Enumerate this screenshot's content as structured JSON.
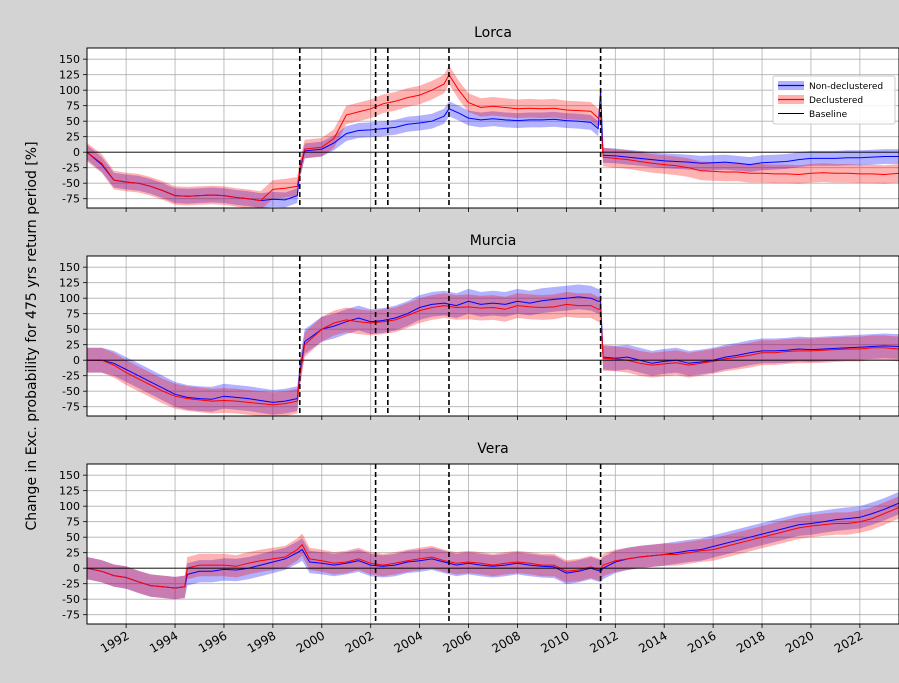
{
  "figure": {
    "ylabel": "Change in Exc. probability for 475 yrs return period [%]",
    "background_color": "#d3d3d3",
    "axes_background_color": "#ffffff",
    "grid": true
  },
  "legend": {
    "placement": "top-right of first panel",
    "entries": [
      {
        "label": "Non-declustered",
        "color": "#0000ff"
      },
      {
        "label": "Declustered",
        "color": "#ff0000"
      },
      {
        "label": "Baseline",
        "color": "#000000"
      }
    ]
  },
  "chart_data": [
    {
      "type": "line",
      "title": "Lorca",
      "xlim": [
        1990.4,
        2023.6
      ],
      "ylim": [
        -90,
        168
      ],
      "xticks": [
        "1992",
        "1994",
        "1996",
        "1998",
        "2000",
        "2002",
        "2004",
        "2006",
        "2008",
        "2010",
        "2012",
        "2014",
        "2016",
        "2018",
        "2020",
        "2022"
      ],
      "yticks": [
        "150",
        "125",
        "100",
        "75",
        "50",
        "25",
        "0",
        "-25",
        "-50",
        "-75"
      ],
      "baseline": 0,
      "event_lines": [
        1999.1,
        2002.2,
        2002.7,
        2005.2,
        2011.4
      ],
      "series": [
        {
          "name": "Non-declustered",
          "color": "#0000ff",
          "band_width": 12,
          "x": [
            1990.4,
            1991,
            1991.5,
            1992,
            1992.5,
            1993,
            1993.5,
            1994,
            1994.5,
            1995,
            1995.5,
            1996,
            1996.5,
            1997,
            1997.5,
            1998,
            1998.5,
            1999,
            1999.1,
            1999.3,
            2000,
            2000.5,
            2001,
            2001.5,
            2002,
            2002.5,
            2003,
            2003.5,
            2004,
            2004.5,
            2005,
            2005.2,
            2005.6,
            2006,
            2006.5,
            2007,
            2007.5,
            2008,
            2008.5,
            2009,
            2009.5,
            2010,
            2010.5,
            2011,
            2011.3,
            2011.4,
            2011.5,
            2012,
            2012.5,
            2013,
            2013.5,
            2014,
            2014.5,
            2015,
            2015.5,
            2016,
            2016.5,
            2017,
            2017.5,
            2018,
            2018.5,
            2019,
            2019.5,
            2020,
            2020.5,
            2021,
            2021.5,
            2022,
            2022.5,
            2023,
            2023.6
          ],
          "y": [
            0,
            -20,
            -45,
            -48,
            -50,
            -55,
            -62,
            -70,
            -71,
            -70,
            -69,
            -70,
            -73,
            -75,
            -78,
            -76,
            -77,
            -70,
            -30,
            2,
            5,
            15,
            30,
            35,
            36,
            38,
            40,
            45,
            47,
            50,
            58,
            70,
            63,
            55,
            52,
            54,
            52,
            51,
            52,
            52,
            53,
            51,
            50,
            48,
            38,
            100,
            -5,
            -6,
            -8,
            -10,
            -12,
            -14,
            -15,
            -16,
            -18,
            -17,
            -16,
            -18,
            -20,
            -17,
            -16,
            -15,
            -12,
            -10,
            -10,
            -10,
            -9,
            -9,
            -8,
            -7,
            -7
          ]
        },
        {
          "name": "Declustered",
          "color": "#ff0000",
          "band_width": 15,
          "x": [
            1990.4,
            1991,
            1991.5,
            1992,
            1992.5,
            1993,
            1993.5,
            1994,
            1994.5,
            1995,
            1995.5,
            1996,
            1996.5,
            1997,
            1997.5,
            1998,
            1998.5,
            1999,
            1999.1,
            1999.3,
            2000,
            2000.5,
            2001,
            2001.5,
            2002,
            2002.5,
            2003,
            2003.5,
            2004,
            2004.5,
            2005,
            2005.2,
            2005.6,
            2006,
            2006.5,
            2007,
            2007.5,
            2008,
            2008.5,
            2009,
            2009.5,
            2010,
            2010.5,
            2011,
            2011.3,
            2011.4,
            2011.5,
            2012,
            2012.5,
            2013,
            2013.5,
            2014,
            2014.5,
            2015,
            2015.5,
            2016,
            2016.5,
            2017,
            2017.5,
            2018,
            2018.5,
            2019,
            2019.5,
            2020,
            2020.5,
            2021,
            2021.5,
            2022,
            2022.5,
            2023,
            2023.6
          ],
          "y": [
            0,
            -18,
            -45,
            -48,
            -50,
            -55,
            -62,
            -70,
            -71,
            -70,
            -69,
            -70,
            -73,
            -75,
            -78,
            -60,
            -58,
            -55,
            -28,
            5,
            8,
            22,
            60,
            65,
            70,
            78,
            82,
            88,
            92,
            100,
            110,
            125,
            100,
            80,
            72,
            74,
            72,
            70,
            71,
            70,
            71,
            68,
            67,
            66,
            55,
            60,
            -8,
            -10,
            -12,
            -15,
            -18,
            -20,
            -22,
            -25,
            -30,
            -31,
            -32,
            -32,
            -34,
            -34,
            -35,
            -35,
            -36,
            -34,
            -33,
            -34,
            -34,
            -35,
            -35,
            -36,
            -34
          ]
        }
      ]
    },
    {
      "type": "line",
      "title": "Murcia",
      "xlim": [
        1990.4,
        2023.6
      ],
      "ylim": [
        -90,
        168
      ],
      "xticks": [
        "1992",
        "1994",
        "1996",
        "1998",
        "2000",
        "2002",
        "2004",
        "2006",
        "2008",
        "2010",
        "2012",
        "2014",
        "2016",
        "2018",
        "2020",
        "2022"
      ],
      "yticks": [
        "150",
        "125",
        "100",
        "75",
        "50",
        "25",
        "0",
        "-25",
        "-50",
        "-75"
      ],
      "baseline": 0,
      "event_lines": [
        1999.1,
        2002.2,
        2002.7,
        2005.2,
        2011.4
      ],
      "series": [
        {
          "name": "Non-declustered",
          "color": "#0000ff",
          "band_width": 20,
          "x": [
            1990.4,
            1991,
            1991.5,
            1992,
            1992.5,
            1993,
            1993.5,
            1994,
            1994.5,
            1995,
            1995.5,
            1996,
            1996.5,
            1997,
            1997.5,
            1998,
            1998.5,
            1999,
            1999.1,
            1999.3,
            2000,
            2000.5,
            2001,
            2001.5,
            2002,
            2002.5,
            2003,
            2003.5,
            2004,
            2004.5,
            2005,
            2005.5,
            2006,
            2006.5,
            2007,
            2007.5,
            2008,
            2008.5,
            2009,
            2009.5,
            2010,
            2010.5,
            2011,
            2011.3,
            2011.4,
            2011.5,
            2012,
            2012.5,
            2013,
            2013.5,
            2014,
            2014.5,
            2015,
            2015.5,
            2016,
            2016.5,
            2017,
            2017.5,
            2018,
            2018.5,
            2019,
            2019.5,
            2020,
            2020.5,
            2021,
            2021.5,
            2022,
            2022.5,
            2023,
            2023.6
          ],
          "y": [
            0,
            0,
            -5,
            -15,
            -25,
            -35,
            -45,
            -55,
            -60,
            -62,
            -63,
            -58,
            -60,
            -62,
            -65,
            -68,
            -66,
            -62,
            -20,
            30,
            50,
            55,
            62,
            68,
            62,
            64,
            68,
            75,
            85,
            90,
            92,
            88,
            95,
            90,
            92,
            90,
            95,
            92,
            96,
            98,
            100,
            102,
            100,
            95,
            95,
            5,
            3,
            5,
            0,
            -5,
            -2,
            0,
            -5,
            -3,
            0,
            5,
            8,
            12,
            15,
            15,
            16,
            18,
            17,
            18,
            19,
            20,
            21,
            22,
            23,
            22
          ]
        },
        {
          "name": "Declustered",
          "color": "#ff0000",
          "band_width": 20,
          "x": [
            1990.4,
            1991,
            1991.5,
            1992,
            1992.5,
            1993,
            1993.5,
            1994,
            1994.5,
            1995,
            1995.5,
            1996,
            1996.5,
            1997,
            1997.5,
            1998,
            1998.5,
            1999,
            1999.1,
            1999.3,
            2000,
            2000.5,
            2001,
            2001.5,
            2002,
            2002.5,
            2003,
            2003.5,
            2004,
            2004.5,
            2005,
            2005.5,
            2006,
            2006.5,
            2007,
            2007.5,
            2008,
            2008.5,
            2009,
            2009.5,
            2010,
            2010.5,
            2011,
            2011.3,
            2011.4,
            2011.5,
            2012,
            2012.5,
            2013,
            2013.5,
            2014,
            2014.5,
            2015,
            2015.5,
            2016,
            2016.5,
            2017,
            2017.5,
            2018,
            2018.5,
            2019,
            2019.5,
            2020,
            2020.5,
            2021,
            2021.5,
            2022,
            2022.5,
            2023,
            2023.6
          ],
          "y": [
            0,
            0,
            -8,
            -20,
            -30,
            -40,
            -50,
            -58,
            -62,
            -64,
            -66,
            -65,
            -66,
            -68,
            -70,
            -72,
            -70,
            -66,
            -25,
            25,
            50,
            60,
            65,
            62,
            60,
            62,
            65,
            72,
            80,
            85,
            88,
            85,
            86,
            84,
            85,
            82,
            88,
            86,
            85,
            86,
            90,
            88,
            88,
            82,
            82,
            3,
            2,
            0,
            -5,
            -8,
            -6,
            -4,
            -8,
            -5,
            -2,
            2,
            5,
            8,
            12,
            12,
            14,
            15,
            15,
            16,
            17,
            18,
            18,
            20,
            20,
            18
          ]
        }
      ]
    },
    {
      "type": "line",
      "title": "Vera",
      "xlim": [
        1990.4,
        2023.6
      ],
      "ylim": [
        -90,
        168
      ],
      "xticks": [
        "1992",
        "1994",
        "1996",
        "1998",
        "2000",
        "2002",
        "2004",
        "2006",
        "2008",
        "2010",
        "2012",
        "2014",
        "2016",
        "2018",
        "2020",
        "2022"
      ],
      "yticks": [
        "150",
        "125",
        "100",
        "75",
        "50",
        "25",
        "0",
        "-25",
        "-50",
        "-75"
      ],
      "baseline": 0,
      "event_lines": [
        2002.2,
        2005.2,
        2011.4
      ],
      "series": [
        {
          "name": "Non-declustered",
          "color": "#0000ff",
          "band_width": 18,
          "x": [
            1990.4,
            1991,
            1991.5,
            1992,
            1992.5,
            1993,
            1993.5,
            1994,
            1994.4,
            1994.5,
            1995,
            1995.5,
            1996,
            1996.5,
            1997,
            1997.5,
            1998,
            1998.5,
            1999,
            1999.2,
            1999.5,
            2000,
            2000.5,
            2001,
            2001.5,
            2002,
            2002.5,
            2003,
            2003.5,
            2004,
            2004.5,
            2005,
            2005.5,
            2006,
            2006.5,
            2007,
            2007.5,
            2008,
            2008.5,
            2009,
            2009.5,
            2010,
            2010.5,
            2011,
            2011.4,
            2011.5,
            2012,
            2012.5,
            2013,
            2013.5,
            2014,
            2014.5,
            2015,
            2015.5,
            2016,
            2016.5,
            2017,
            2017.5,
            2018,
            2018.5,
            2019,
            2019.5,
            2020,
            2020.5,
            2021,
            2021.5,
            2022,
            2022.5,
            2023,
            2023.6
          ],
          "y": [
            0,
            -5,
            -12,
            -15,
            -22,
            -28,
            -30,
            -32,
            -30,
            -10,
            -5,
            -5,
            -2,
            -3,
            0,
            5,
            10,
            15,
            25,
            30,
            10,
            8,
            5,
            8,
            12,
            5,
            3,
            5,
            10,
            12,
            15,
            10,
            5,
            8,
            5,
            3,
            5,
            8,
            5,
            3,
            2,
            -8,
            -5,
            0,
            -5,
            0,
            10,
            15,
            18,
            20,
            22,
            25,
            28,
            30,
            35,
            40,
            45,
            50,
            55,
            60,
            65,
            70,
            72,
            75,
            78,
            80,
            82,
            88,
            95,
            105
          ]
        },
        {
          "name": "Declustered",
          "color": "#ff0000",
          "band_width": 18,
          "x": [
            1990.4,
            1991,
            1991.5,
            1992,
            1992.5,
            1993,
            1993.5,
            1994,
            1994.4,
            1994.5,
            1995,
            1995.5,
            1996,
            1996.5,
            1997,
            1997.5,
            1998,
            1998.5,
            1999,
            1999.2,
            1999.5,
            2000,
            2000.5,
            2001,
            2001.5,
            2002,
            2002.5,
            2003,
            2003.5,
            2004,
            2004.5,
            2005,
            2005.5,
            2006,
            2006.5,
            2007,
            2007.5,
            2008,
            2008.5,
            2009,
            2009.5,
            2010,
            2010.5,
            2011,
            2011.4,
            2011.5,
            2012,
            2012.5,
            2013,
            2013.5,
            2014,
            2014.5,
            2015,
            2015.5,
            2016,
            2016.5,
            2017,
            2017.5,
            2018,
            2018.5,
            2019,
            2019.5,
            2020,
            2020.5,
            2021,
            2021.5,
            2022,
            2022.5,
            2023,
            2023.6
          ],
          "y": [
            0,
            -5,
            -12,
            -15,
            -22,
            -28,
            -30,
            -32,
            -30,
            0,
            5,
            5,
            5,
            3,
            8,
            12,
            15,
            18,
            30,
            38,
            15,
            12,
            8,
            10,
            15,
            8,
            5,
            8,
            12,
            15,
            18,
            12,
            8,
            10,
            8,
            5,
            8,
            10,
            8,
            5,
            5,
            -5,
            -3,
            2,
            -3,
            5,
            12,
            15,
            18,
            20,
            22,
            22,
            25,
            28,
            30,
            35,
            40,
            45,
            50,
            55,
            60,
            65,
            68,
            70,
            72,
            72,
            75,
            80,
            88,
            98
          ]
        }
      ]
    }
  ]
}
